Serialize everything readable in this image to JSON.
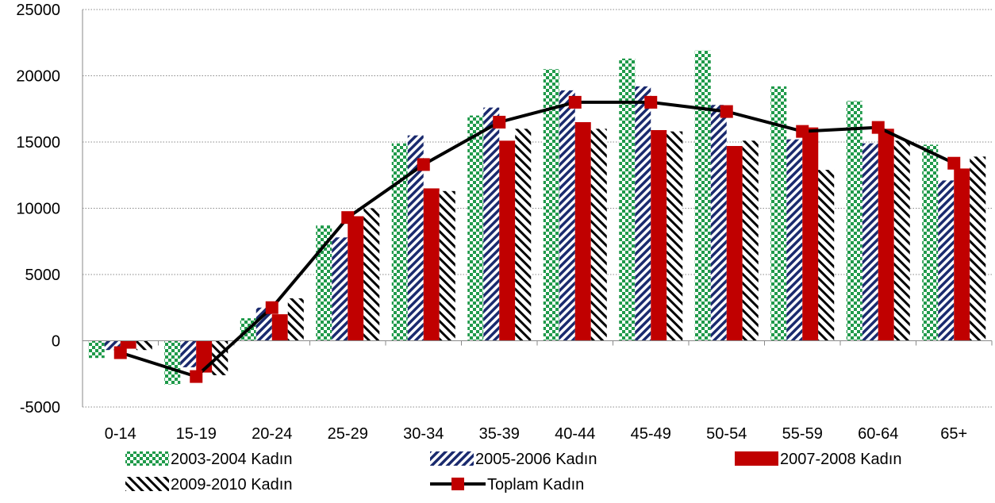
{
  "chart_data": {
    "type": "bar",
    "categories": [
      "0-14",
      "15-19",
      "20-24",
      "25-29",
      "30-34",
      "35-39",
      "40-44",
      "45-49",
      "50-54",
      "55-59",
      "60-64",
      "65+"
    ],
    "ylim": [
      -5000,
      25000
    ],
    "yticks": [
      -5000,
      0,
      5000,
      10000,
      15000,
      20000,
      25000
    ],
    "grid": true,
    "legend_position": "bottom",
    "series": [
      {
        "name": "2003-2004 Kadın",
        "kind": "bar",
        "pattern": "green-checker",
        "color": "#1f9a4a",
        "values": [
          -1300,
          -3300,
          1700,
          8700,
          14900,
          17000,
          20500,
          21300,
          21900,
          19200,
          18100,
          14800
        ]
      },
      {
        "name": "2005-2006 Kadın",
        "kind": "bar",
        "pattern": "navy-diagonal",
        "color": "#1a2a6e",
        "values": [
          -700,
          -2000,
          2500,
          7800,
          15500,
          17600,
          18900,
          19200,
          17800,
          15200,
          14900,
          12100
        ]
      },
      {
        "name": "2007-2008 Kadın",
        "kind": "bar",
        "pattern": "solid-red",
        "color": "#c00000",
        "values": [
          -600,
          -2400,
          2000,
          9400,
          11500,
          15100,
          16500,
          15900,
          14700,
          16100,
          16000,
          13000
        ]
      },
      {
        "name": "2009-2010 Kadın",
        "kind": "bar",
        "pattern": "black-diagonal",
        "color": "#000000",
        "values": [
          -700,
          -2600,
          3200,
          10000,
          11300,
          16000,
          16000,
          15800,
          15100,
          12900,
          15100,
          13900
        ]
      },
      {
        "name": "Toplam Kadın",
        "kind": "line",
        "color": "#000000",
        "marker_color": "#c00000",
        "values": [
          -900,
          -2700,
          2500,
          9300,
          13300,
          16500,
          18000,
          18000,
          17300,
          15800,
          16100,
          13400
        ]
      }
    ]
  }
}
